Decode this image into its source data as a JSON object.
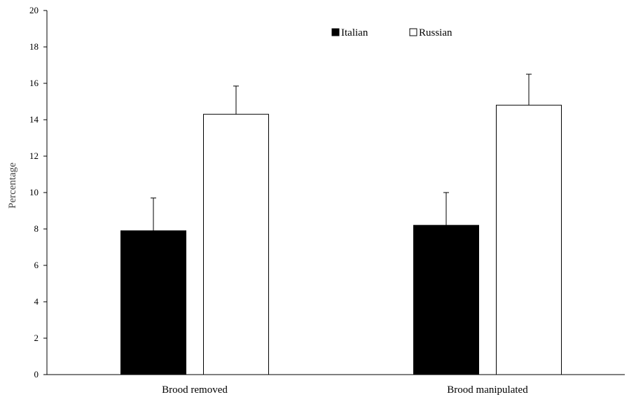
{
  "chart_data": {
    "type": "bar",
    "categories": [
      "Brood removed",
      "Brood manipulated"
    ],
    "series": [
      {
        "name": "Italian",
        "color": "#000000",
        "values": [
          7.9,
          8.2
        ],
        "error": [
          1.8,
          1.8
        ]
      },
      {
        "name": "Russian",
        "color": "#ffffff",
        "values": [
          14.3,
          14.8
        ],
        "error": [
          1.55,
          1.7
        ]
      }
    ],
    "xlabel": "",
    "ylabel": "Percentage",
    "ylim": [
      0,
      20
    ],
    "yticks": [
      0,
      2,
      4,
      6,
      8,
      10,
      12,
      14,
      16,
      18,
      20
    ],
    "grid": false,
    "legend_position": "top-center"
  }
}
